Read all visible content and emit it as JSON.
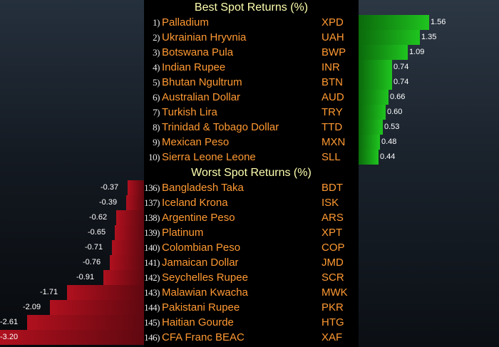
{
  "best": {
    "title": "Best Spot Returns (%)",
    "rows": [
      {
        "rank": "1)",
        "name": "Palladium",
        "code": "XPD",
        "value": "1.56"
      },
      {
        "rank": "2)",
        "name": "Ukrainian Hryvnia",
        "code": "UAH",
        "value": "1.35"
      },
      {
        "rank": "3)",
        "name": "Botswana Pula",
        "code": "BWP",
        "value": "1.09"
      },
      {
        "rank": "4)",
        "name": "Indian Rupee",
        "code": "INR",
        "value": "0.74"
      },
      {
        "rank": "5)",
        "name": "Bhutan Ngultrum",
        "code": "BTN",
        "value": "0.74"
      },
      {
        "rank": "6)",
        "name": "Australian Dollar",
        "code": "AUD",
        "value": "0.66"
      },
      {
        "rank": "7)",
        "name": "Turkish Lira",
        "code": "TRY",
        "value": "0.60"
      },
      {
        "rank": "8)",
        "name": "Trinidad & Tobago Dollar",
        "code": "TTD",
        "value": "0.53"
      },
      {
        "rank": "9)",
        "name": "Mexican Peso",
        "code": "MXN",
        "value": "0.48"
      },
      {
        "rank": "10)",
        "name": "Sierra Leone Leone",
        "code": "SLL",
        "value": "0.44"
      }
    ]
  },
  "worst": {
    "title": "Worst Spot Returns (%)",
    "rows": [
      {
        "rank": "136)",
        "name": "Bangladesh Taka",
        "code": "BDT",
        "value": "-0.37"
      },
      {
        "rank": "137)",
        "name": "Iceland Krona",
        "code": "ISK",
        "value": "-0.39"
      },
      {
        "rank": "138)",
        "name": "Argentine Peso",
        "code": "ARS",
        "value": "-0.62"
      },
      {
        "rank": "139)",
        "name": "Platinum",
        "code": "XPT",
        "value": "-0.65"
      },
      {
        "rank": "140)",
        "name": "Colombian Peso",
        "code": "COP",
        "value": "-0.71"
      },
      {
        "rank": "141)",
        "name": "Jamaican Dollar",
        "code": "JMD",
        "value": "-0.76"
      },
      {
        "rank": "142)",
        "name": "Seychelles Rupee",
        "code": "SCR",
        "value": "-0.91"
      },
      {
        "rank": "143)",
        "name": "Malawian Kwacha",
        "code": "MWK",
        "value": "-1.71"
      },
      {
        "rank": "144)",
        "name": "Pakistani Rupee",
        "code": "PKR",
        "value": "-2.09"
      },
      {
        "rank": "145)",
        "name": "Haitian Gourde",
        "code": "HTG",
        "value": "-2.61"
      },
      {
        "rank": "146)",
        "name": "CFA Franc BEAC",
        "code": "XAF",
        "value": "-3.20"
      }
    ]
  },
  "colors": {
    "header": "#ffffb0",
    "label": "#ff9933",
    "rank": "#e8e8e8",
    "positive_bar": "#1fc41f",
    "negative_bar": "#b0101e"
  }
}
